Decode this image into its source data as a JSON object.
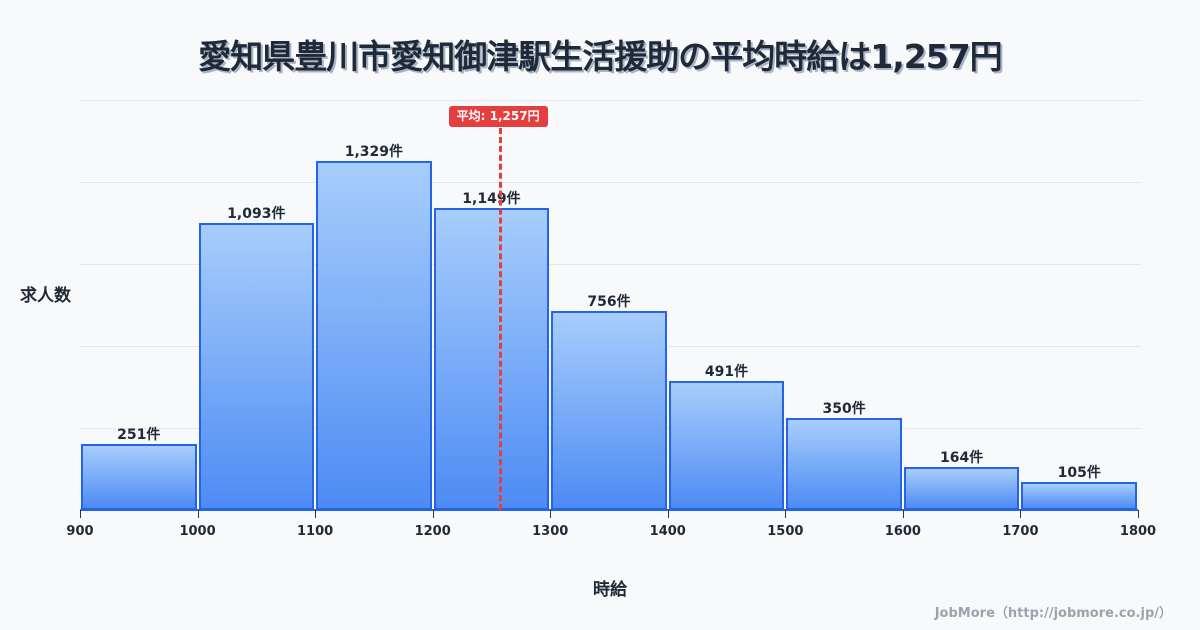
{
  "title": "愛知県豊川市愛知御津駅生活援助の平均時給は1,257円",
  "credit": "JobMore（http://jobmore.co.jp/）",
  "average_badge": "平均: 1,257円",
  "colors": {
    "bar_border": "#2563eb",
    "bar_top": "#a7cdfb",
    "bar_bottom": "#4d8bf4",
    "average": "#e53e3e",
    "text": "#1f2937"
  },
  "chart_data": {
    "type": "bar",
    "title": "愛知県豊川市愛知御津駅生活援助の平均時給は1,257円",
    "xlabel": "時給",
    "ylabel": "求人数",
    "bins": [
      [
        900,
        1000
      ],
      [
        1000,
        1100
      ],
      [
        1100,
        1200
      ],
      [
        1200,
        1300
      ],
      [
        1300,
        1400
      ],
      [
        1400,
        1500
      ],
      [
        1500,
        1600
      ],
      [
        1600,
        1700
      ],
      [
        1700,
        1800
      ]
    ],
    "categories": [
      "900-1000",
      "1000-1100",
      "1100-1200",
      "1200-1300",
      "1300-1400",
      "1400-1500",
      "1500-1600",
      "1600-1700",
      "1700-1800"
    ],
    "values": [
      251,
      1093,
      1329,
      1149,
      756,
      491,
      350,
      164,
      105
    ],
    "value_labels": [
      "251件",
      "1,093件",
      "1,329件",
      "1,149件",
      "756件",
      "491件",
      "350件",
      "164件",
      "105件"
    ],
    "x_ticks": [
      "900",
      "1000",
      "1100",
      "1200",
      "1300",
      "1400",
      "1500",
      "1600",
      "1700",
      "1800"
    ],
    "xlim": [
      900,
      1800
    ],
    "ylim": [
      0,
      1561
    ],
    "grid": true,
    "average": {
      "value": 1257,
      "label": "平均: 1,257円"
    },
    "legend": null
  }
}
